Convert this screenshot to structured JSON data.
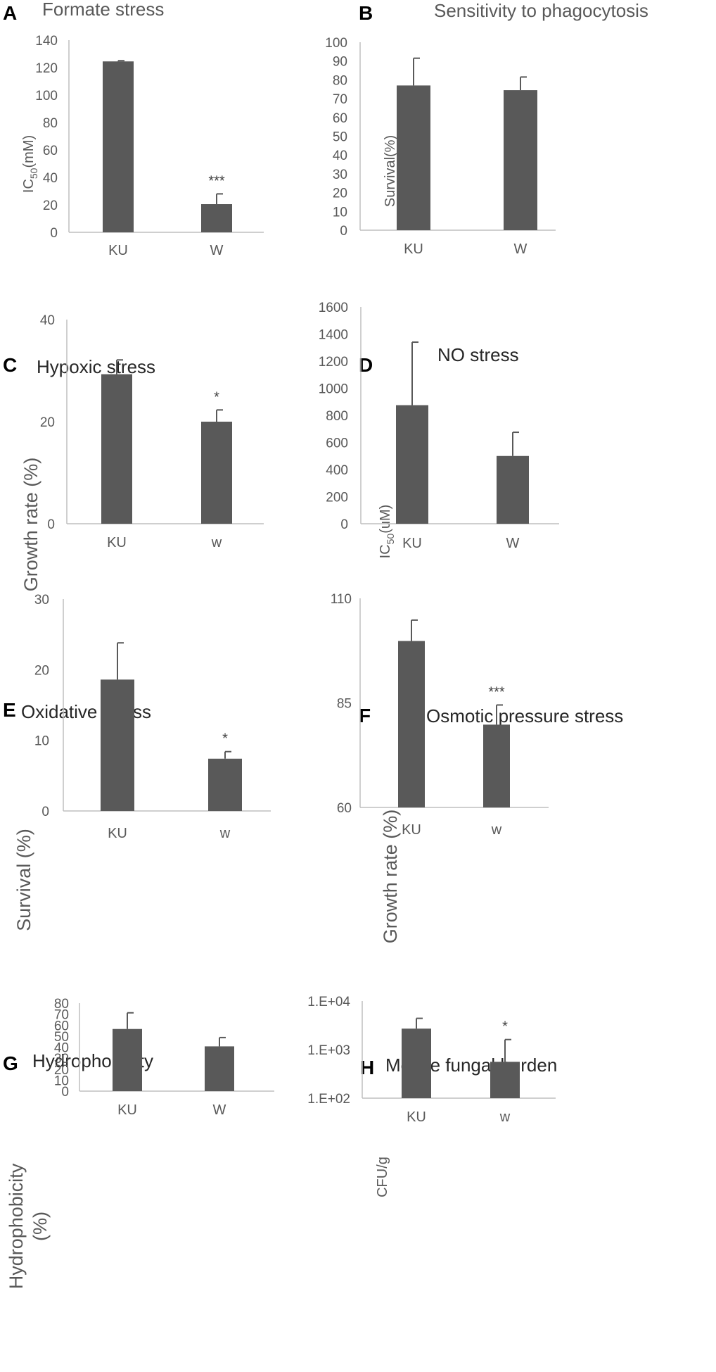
{
  "colors": {
    "bar": "#595959",
    "axis": "#bfbfbf",
    "text": "#595959",
    "title": "#262626"
  },
  "chart_data": [
    {
      "id": "A",
      "letter": "A",
      "type": "bar",
      "title": "Formate stress",
      "ylabel": "IC50(mM)",
      "ylabel_main": "IC",
      "ylabel_sub": "50",
      "ylabel_tail": "(mM)",
      "categories": [
        "KU",
        "W"
      ],
      "values": [
        124.5,
        20.5
      ],
      "errors": [
        0.5,
        7.5
      ],
      "significance": [
        "",
        "***"
      ],
      "ylim": [
        0,
        140
      ],
      "step": 20,
      "scale": "linear",
      "ticks": [
        "0",
        "20",
        "40",
        "60",
        "80",
        "100",
        "120",
        "140"
      ]
    },
    {
      "id": "B",
      "letter": "B",
      "type": "bar",
      "title": "Sensitivity to phagocytosis",
      "ylabel": "Survival(%)",
      "categories": [
        "KU",
        "W"
      ],
      "values": [
        77,
        74.5
      ],
      "errors": [
        14.5,
        7
      ],
      "significance": [
        "",
        ""
      ],
      "ylim": [
        0,
        100
      ],
      "step": 10,
      "scale": "linear",
      "ticks": [
        "0",
        "10",
        "20",
        "30",
        "40",
        "50",
        "60",
        "70",
        "80",
        "90",
        "100"
      ]
    },
    {
      "id": "C",
      "letter": "C",
      "type": "bar",
      "title": "Hypoxic stress",
      "ylabel": "Growth rate (%)",
      "categories": [
        "KU",
        "w"
      ],
      "values": [
        29.3,
        20
      ],
      "errors": [
        2.8,
        2.3
      ],
      "significance": [
        "",
        "*"
      ],
      "ylim": [
        0,
        40
      ],
      "step": 20,
      "scale": "linear",
      "ticks": [
        "0",
        "20",
        "40"
      ]
    },
    {
      "id": "D",
      "letter": "D",
      "type": "bar",
      "title": "NO stress",
      "ylabel": "IC50(uM)",
      "ylabel_main": "IC",
      "ylabel_sub": "50",
      "ylabel_tail": "(uM)",
      "categories": [
        "KU",
        "W"
      ],
      "values": [
        875,
        500
      ],
      "errors": [
        465,
        175
      ],
      "significance": [
        "",
        ""
      ],
      "ylim": [
        0,
        1600
      ],
      "step": 200,
      "scale": "linear",
      "ticks": [
        "0",
        "200",
        "400",
        "600",
        "800",
        "1000",
        "1200",
        "1400",
        "1600"
      ]
    },
    {
      "id": "E",
      "letter": "E",
      "type": "bar",
      "title": "Oxidative stress",
      "ylabel": "Survival (%)",
      "categories": [
        "KU",
        "w"
      ],
      "values": [
        18.6,
        7.4
      ],
      "errors": [
        5.2,
        1.0
      ],
      "significance": [
        "",
        "*"
      ],
      "ylim": [
        0,
        30
      ],
      "step": 10,
      "scale": "linear",
      "ticks": [
        "0",
        "10",
        "20",
        "30"
      ]
    },
    {
      "id": "F",
      "letter": "F",
      "type": "bar",
      "title": "Osmotic pressure stress",
      "ylabel": "Growth rate (%)",
      "categories": [
        "KU",
        "w"
      ],
      "values": [
        99.8,
        79.8
      ],
      "errors": [
        5.0,
        4.7
      ],
      "significance": [
        "",
        "***"
      ],
      "ylim": [
        60,
        110
      ],
      "step": 25,
      "scale": "linear",
      "ticks": [
        "60",
        "85",
        "110"
      ]
    },
    {
      "id": "G",
      "letter": "G",
      "type": "bar",
      "title": "Hydrophobicity",
      "ylabel": "Hydrophobicity (%)",
      "ylabel_lines": [
        "Hydrophobicity",
        "(%)"
      ],
      "categories": [
        "KU",
        "W"
      ],
      "values": [
        56.5,
        40.7
      ],
      "errors": [
        14.7,
        8
      ],
      "significance": [
        "",
        ""
      ],
      "ylim": [
        0,
        80
      ],
      "step": 10,
      "scale": "linear",
      "ticks": [
        "0",
        "10",
        "20",
        "30",
        "40",
        "50",
        "60",
        "70",
        "80"
      ]
    },
    {
      "id": "H",
      "letter": "H",
      "type": "bar",
      "title": "Mouse fungal burden",
      "ylabel": "CFU/g",
      "categories": [
        "KU",
        "w"
      ],
      "values": [
        2700,
        560
      ],
      "errors": [
        1700,
        1050
      ],
      "significance": [
        "",
        "*"
      ],
      "ylim": [
        100,
        10000
      ],
      "scale": "log",
      "ticks": [
        "1.E+02",
        "1.E+03",
        "1.E+04"
      ]
    }
  ]
}
